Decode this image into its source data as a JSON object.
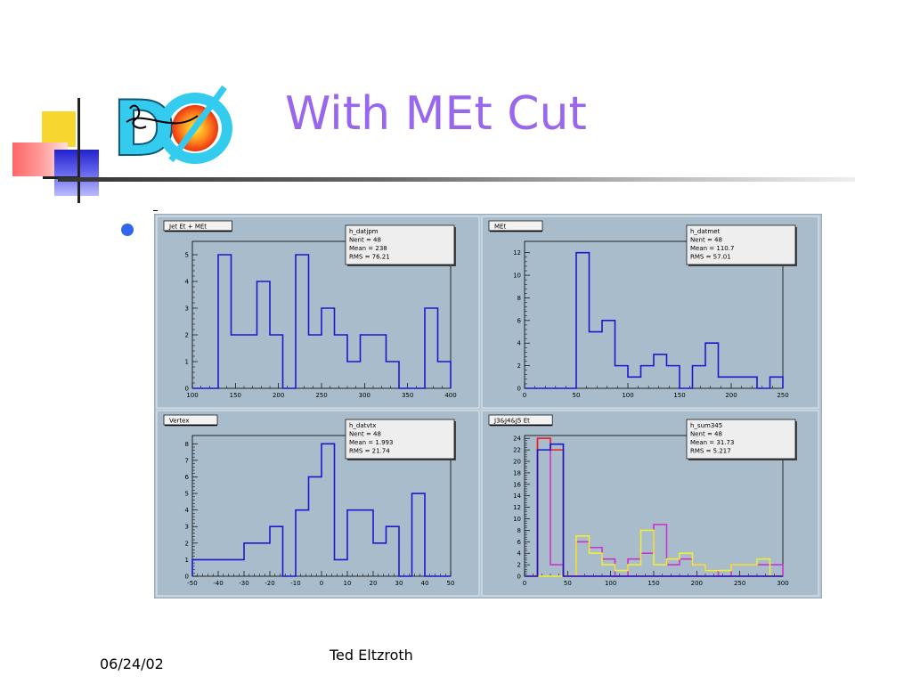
{
  "slide": {
    "title": "With MEt Cut",
    "date": "06/24/02",
    "author": "Ted Eltzroth",
    "logo_text": "DØ"
  },
  "colors": {
    "title": "#9966ee",
    "panel_bg": "#a8bccb",
    "frame_bg": "#b4c6d3",
    "hist_blue": "#1a1acc",
    "hist_red": "#ee2222",
    "hist_magenta": "#cc33cc",
    "hist_yellow": "#eeee33"
  },
  "chart_data": [
    {
      "type": "histogram",
      "title": "Jet Et + MEt",
      "stats": {
        "name": "h_datjpm",
        "nent": "Nent = 48",
        "mean": "Mean =    238",
        "rms": "RMS   =  76.21"
      },
      "xlim": [
        100,
        400
      ],
      "ylim": [
        0,
        5.5
      ],
      "xticks": [
        100,
        150,
        200,
        250,
        300,
        350,
        400
      ],
      "yticks": [
        0,
        1,
        2,
        3,
        4,
        5
      ],
      "series": [
        {
          "color": "#1a1acc",
          "bins": [
            [
              100,
              130,
              0
            ],
            [
              130,
              145,
              5
            ],
            [
              145,
              175,
              2
            ],
            [
              175,
              190,
              4
            ],
            [
              190,
              205,
              2
            ],
            [
              205,
              220,
              0
            ],
            [
              220,
              235,
              5
            ],
            [
              235,
              250,
              2
            ],
            [
              250,
              265,
              3
            ],
            [
              265,
              280,
              2
            ],
            [
              280,
              295,
              1
            ],
            [
              295,
              325,
              2
            ],
            [
              325,
              340,
              1
            ],
            [
              340,
              355,
              0
            ],
            [
              355,
              370,
              0
            ],
            [
              370,
              385,
              3
            ],
            [
              385,
              400,
              1
            ]
          ]
        }
      ]
    },
    {
      "type": "histogram",
      "title": "MEt",
      "stats": {
        "name": "h_datmet",
        "nent": "Nent = 48",
        "mean": "Mean  =  110.7",
        "rms": "RMS   =  57.01"
      },
      "xlim": [
        0,
        250
      ],
      "ylim": [
        0,
        13
      ],
      "xticks": [
        0,
        50,
        100,
        150,
        200,
        250
      ],
      "yticks": [
        0,
        2,
        4,
        6,
        8,
        10,
        12
      ],
      "series": [
        {
          "color": "#1a1acc",
          "bins": [
            [
              0,
              50,
              0
            ],
            [
              50,
              62.5,
              12
            ],
            [
              62.5,
              75,
              5
            ],
            [
              75,
              87.5,
              6
            ],
            [
              87.5,
              100,
              2
            ],
            [
              100,
              112.5,
              1
            ],
            [
              112.5,
              125,
              2
            ],
            [
              125,
              137.5,
              3
            ],
            [
              137.5,
              150,
              2
            ],
            [
              150,
              162.5,
              0
            ],
            [
              162.5,
              175,
              2
            ],
            [
              175,
              187.5,
              4
            ],
            [
              187.5,
              225,
              1
            ],
            [
              225,
              237.5,
              0
            ],
            [
              237.5,
              250,
              1
            ]
          ]
        }
      ]
    },
    {
      "type": "histogram",
      "title": "Vertex",
      "stats": {
        "name": "h_datvtx",
        "nent": "Nent = 48",
        "mean": "Mean  =  1.993",
        "rms": "RMS   =  21.74"
      },
      "xlim": [
        -50,
        50
      ],
      "ylim": [
        0,
        8.5
      ],
      "xticks": [
        -50,
        -40,
        -30,
        -20,
        -10,
        0,
        10,
        20,
        30,
        40,
        50
      ],
      "yticks": [
        0,
        1,
        2,
        3,
        4,
        5,
        6,
        7,
        8
      ],
      "series": [
        {
          "color": "#1a1acc",
          "bins": [
            [
              -50,
              -30,
              1
            ],
            [
              -30,
              -20,
              2
            ],
            [
              -20,
              -15,
              3
            ],
            [
              -15,
              -10,
              0
            ],
            [
              -10,
              -5,
              4
            ],
            [
              -5,
              0,
              6
            ],
            [
              0,
              5,
              8
            ],
            [
              5,
              10,
              1
            ],
            [
              10,
              20,
              4
            ],
            [
              20,
              25,
              2
            ],
            [
              25,
              30,
              3
            ],
            [
              30,
              35,
              0
            ],
            [
              35,
              40,
              5
            ],
            [
              40,
              50,
              0
            ]
          ]
        }
      ]
    },
    {
      "type": "histogram",
      "title": "J3&J4&J5 Et",
      "stats": {
        "name": "h_sum345",
        "nent": "Nent = 48",
        "mean": "Mean  =  31.73",
        "rms": "RMS   =  5.217"
      },
      "xlim": [
        0,
        300
      ],
      "ylim": [
        0,
        24.5
      ],
      "xticks": [
        0,
        50,
        100,
        150,
        200,
        250,
        300
      ],
      "yticks": [
        0,
        2,
        4,
        6,
        8,
        10,
        12,
        14,
        16,
        18,
        20,
        22,
        24
      ],
      "series": [
        {
          "color": "#cc33cc",
          "bins": [
            [
              0,
              15,
              0
            ],
            [
              15,
              30,
              24
            ],
            [
              30,
              45,
              2
            ],
            [
              45,
              60,
              0
            ],
            [
              60,
              75,
              6
            ],
            [
              75,
              90,
              5
            ],
            [
              90,
              105,
              3
            ],
            [
              105,
              120,
              0
            ],
            [
              120,
              135,
              3
            ],
            [
              135,
              150,
              4
            ],
            [
              150,
              165,
              9
            ],
            [
              165,
              180,
              2
            ],
            [
              180,
              195,
              3
            ],
            [
              195,
              210,
              2
            ],
            [
              210,
              225,
              1
            ],
            [
              225,
              240,
              0
            ],
            [
              240,
              255,
              2
            ],
            [
              255,
              270,
              2
            ],
            [
              270,
              300,
              2
            ]
          ]
        },
        {
          "color": "#eeee33",
          "bins": [
            [
              0,
              60,
              0
            ],
            [
              60,
              75,
              7
            ],
            [
              75,
              90,
              4
            ],
            [
              90,
              105,
              2
            ],
            [
              105,
              120,
              1
            ],
            [
              120,
              135,
              2
            ],
            [
              135,
              150,
              8
            ],
            [
              150,
              165,
              2
            ],
            [
              165,
              180,
              3
            ],
            [
              180,
              195,
              4
            ],
            [
              195,
              210,
              2
            ],
            [
              210,
              225,
              1
            ],
            [
              225,
              240,
              1
            ],
            [
              240,
              255,
              2
            ],
            [
              255,
              270,
              2
            ],
            [
              270,
              285,
              3
            ],
            [
              285,
              300,
              0
            ]
          ]
        },
        {
          "color": "#ee2222",
          "bins": [
            [
              0,
              15,
              0
            ],
            [
              15,
              30,
              24
            ],
            [
              30,
              45,
              22
            ],
            [
              45,
              300,
              0
            ]
          ]
        },
        {
          "color": "#1a1acc",
          "bins": [
            [
              0,
              15,
              0
            ],
            [
              15,
              30,
              22
            ],
            [
              30,
              45,
              23
            ],
            [
              45,
              300,
              0
            ]
          ]
        }
      ]
    }
  ]
}
